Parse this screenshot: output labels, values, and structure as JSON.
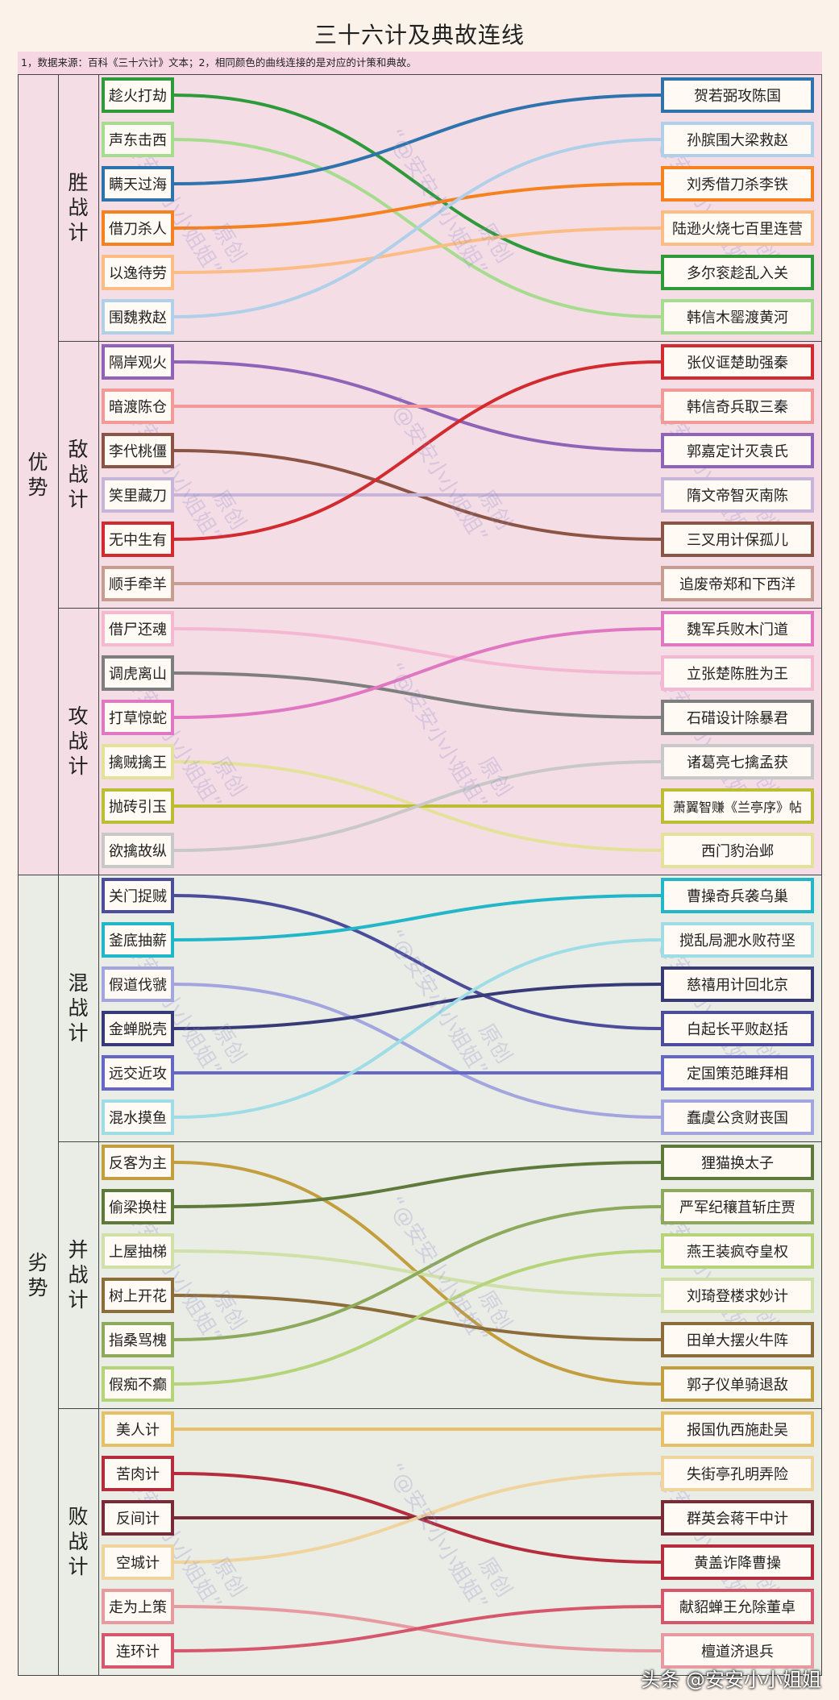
{
  "title": "三十六计及典故连线",
  "note": "1，数据来源：百科《三十六计》文本；2，相同颜色的曲线连接的是对应的计策和典故。",
  "groups": [
    {
      "label": "优势",
      "bg": "#f5dde6"
    },
    {
      "label": "劣势",
      "bg": "#eaece6"
    }
  ],
  "sections": [
    {
      "label": "胜战计",
      "items": [
        {
          "name": "趁火打劫",
          "color": "#2e9a3a",
          "target": 4
        },
        {
          "name": "声东击西",
          "color": "#a6dc8e",
          "target": 5
        },
        {
          "name": "瞒天过海",
          "color": "#2f73ad",
          "target": 0
        },
        {
          "name": "借刀杀人",
          "color": "#f5821f",
          "target": 2
        },
        {
          "name": "以逸待劳",
          "color": "#fbbd85",
          "target": 3
        },
        {
          "name": "围魏救赵",
          "color": "#b0cfe9",
          "target": 1
        }
      ],
      "stories": [
        "贺若弼攻陈国",
        "孙膑围大梁救赵",
        "刘秀借刀杀李铁",
        "陆逊火烧七百里连营",
        "多尔衮趁乱入关",
        "韩信木罂渡黄河"
      ]
    },
    {
      "label": "敌战计",
      "items": [
        {
          "name": "隔岸观火",
          "color": "#8f64b8",
          "target": 2
        },
        {
          "name": "暗渡陈仓",
          "color": "#f29a98",
          "target": 1
        },
        {
          "name": "李代桃僵",
          "color": "#8c5444",
          "target": 4
        },
        {
          "name": "笑里藏刀",
          "color": "#c6b4d9",
          "target": 3
        },
        {
          "name": "无中生有",
          "color": "#d22a2e",
          "target": 0
        },
        {
          "name": "顺手牵羊",
          "color": "#c79c91",
          "target": 5
        }
      ],
      "stories": [
        "张仪诓楚助强秦",
        "韩信奇兵取三秦",
        "郭嘉定计灭袁氏",
        "隋文帝智灭南陈",
        "三叉用计保孤儿",
        "追废帝郑和下西洋"
      ]
    },
    {
      "label": "攻战计",
      "items": [
        {
          "name": "借尸还魂",
          "color": "#f5b8d2",
          "target": 1
        },
        {
          "name": "调虎离山",
          "color": "#7e7e7e",
          "target": 2
        },
        {
          "name": "打草惊蛇",
          "color": "#e077c2",
          "target": 0
        },
        {
          "name": "擒贼擒王",
          "color": "#e4e29a",
          "target": 5
        },
        {
          "name": "抛砖引玉",
          "color": "#bcbd32",
          "target": 4
        },
        {
          "name": "欲擒故纵",
          "color": "#c8c8c8",
          "target": 3
        }
      ],
      "stories": [
        "魏军兵败木门道",
        "立张楚陈胜为王",
        "石碏设计除暴君",
        "诸葛亮七擒孟获",
        "萧翼智赚《兰亭序》帖",
        "西门豹治邺"
      ]
    },
    {
      "label": "混战计",
      "items": [
        {
          "name": "关门捉贼",
          "color": "#4b4d9a",
          "target": 3
        },
        {
          "name": "釜底抽薪",
          "color": "#22b6c9",
          "target": 0
        },
        {
          "name": "假道伐虢",
          "color": "#a3a5de",
          "target": 5
        },
        {
          "name": "金蝉脱壳",
          "color": "#373a76",
          "target": 2
        },
        {
          "name": "远交近攻",
          "color": "#6467c6",
          "target": 4
        },
        {
          "name": "混水摸鱼",
          "color": "#9edde6",
          "target": 1
        }
      ],
      "stories": [
        "曹操奇兵袭乌巢",
        "搅乱局淝水败苻坚",
        "慈禧用计回北京",
        "白起长平败赵括",
        "定国策范雎拜相",
        "蠢虞公贪财丧国"
      ]
    },
    {
      "label": "并战计",
      "items": [
        {
          "name": "反客为主",
          "color": "#c29e3e",
          "target": 5
        },
        {
          "name": "偷梁换柱",
          "color": "#5d7a3a",
          "target": 0
        },
        {
          "name": "上屋抽梯",
          "color": "#cfe1a8",
          "target": 3
        },
        {
          "name": "树上开花",
          "color": "#8c6c38",
          "target": 4
        },
        {
          "name": "指桑骂槐",
          "color": "#8daa5c",
          "target": 1
        },
        {
          "name": "假痴不癫",
          "color": "#b5d47a",
          "target": 2
        }
      ],
      "stories": [
        "狸猫换太子",
        "严军纪穰苴斩庄贾",
        "燕王装疯夺皇权",
        "刘琦登楼求妙计",
        "田单大摆火牛阵",
        "郭子仪单骑退敌"
      ]
    },
    {
      "label": "败战计",
      "items": [
        {
          "name": "美人计",
          "color": "#e6c066",
          "target": 0
        },
        {
          "name": "苦肉计",
          "color": "#b52d3d",
          "target": 3
        },
        {
          "name": "反间计",
          "color": "#7b2b38",
          "target": 2
        },
        {
          "name": "空城计",
          "color": "#f0d49e",
          "target": 1
        },
        {
          "name": "走为上策",
          "color": "#e79aa0",
          "target": 5
        },
        {
          "name": "连环计",
          "color": "#d6566b",
          "target": 4
        }
      ],
      "stories": [
        "报国仇西施赴吴",
        "失街亭孔明弄险",
        "群英会蒋干中计",
        "黄盖诈降曹操",
        "献貂蝉王允除董卓",
        "檀道济退兵"
      ]
    }
  ],
  "watermark": {
    "text1": "“@安安小小姐姐”",
    "text2": "原创"
  },
  "credit": "头条 @安安小小姐姐"
}
